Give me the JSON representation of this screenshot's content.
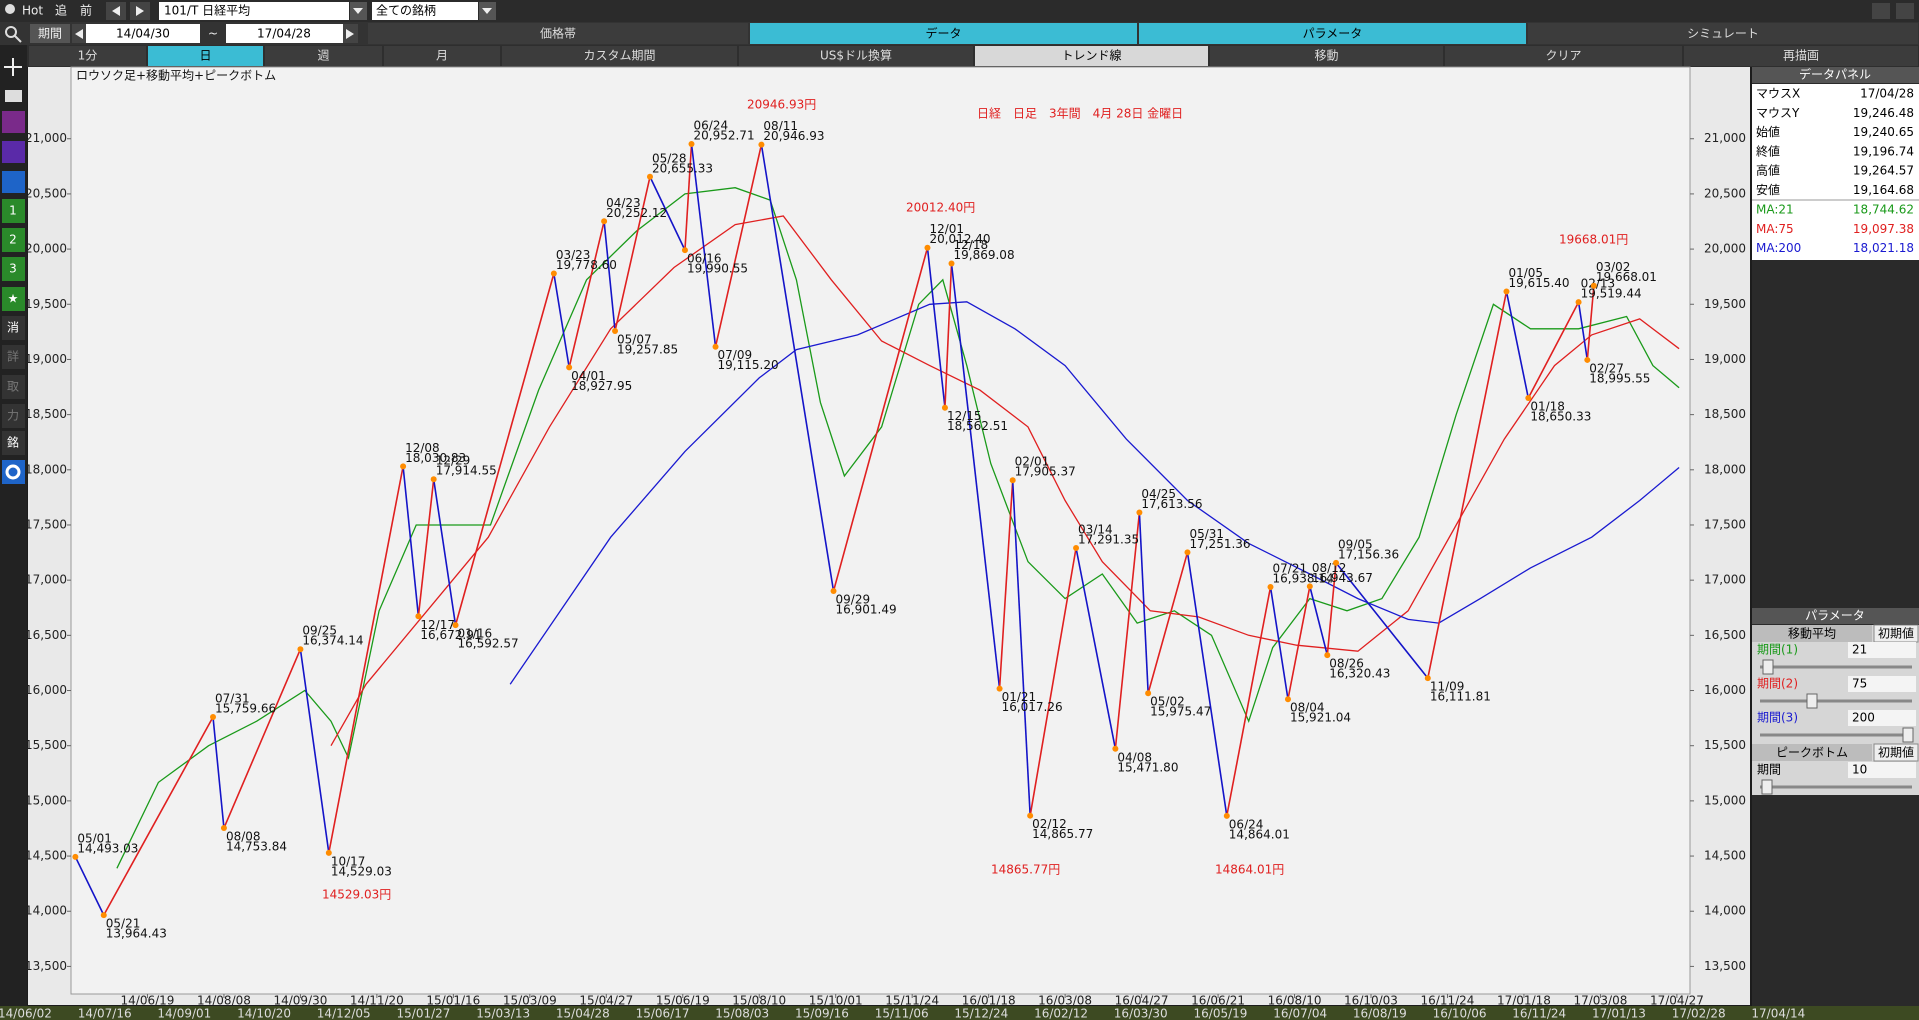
{
  "ui": {
    "toolbar": {
      "hot": "Hot",
      "buttons": [
        "追",
        "前"
      ],
      "symbol": "101/T 日経平均",
      "universe": "全ての銘柄"
    },
    "period": {
      "label": "期間",
      "from": "14/04/30",
      "sep": "~",
      "to": "17/04/28"
    },
    "tabs": [
      "価格帯",
      "データ",
      "パラメータ",
      "シミュレート"
    ],
    "timeframes": [
      "1分",
      "日",
      "週",
      "月",
      "カスタム期間",
      "US$ドル換算",
      "トレンド線",
      "移動",
      "クリア",
      "再描画"
    ],
    "sidebar": [
      "1",
      "2",
      "3",
      "★",
      "消",
      "詳",
      "取",
      "力",
      "銘"
    ],
    "data_panel": {
      "title": "データパネル",
      "rows": [
        [
          "マウスX",
          "17/04/28"
        ],
        [
          "マウスY",
          "19,246.48"
        ],
        [
          "始値",
          "19,240.65"
        ],
        [
          "終値",
          "19,196.74"
        ],
        [
          "高値",
          "19,264.57"
        ],
        [
          "安値",
          "19,164.68"
        ]
      ],
      "ma_values": [
        "18,744.62",
        "19,097.38",
        "18,021.18"
      ]
    },
    "param_panel": {
      "title": "パラメータ",
      "ma_label": "移動平均",
      "reset": "初期値",
      "periods": [
        {
          "label": "期間(1)",
          "value": 21
        },
        {
          "label": "期間(2)",
          "value": 75
        },
        {
          "label": "期間(3)",
          "value": 200
        }
      ],
      "peak_label": "ピークボトム",
      "peak_period": {
        "label": "期間",
        "value": 10
      }
    },
    "bottom_dates": [
      "14/06/02",
      "14/07/16",
      "14/09/01",
      "14/10/20",
      "14/12/05",
      "15/01/27",
      "15/03/13",
      "15/04/28",
      "15/06/17",
      "15/08/03",
      "15/09/16",
      "15/11/06",
      "15/12/24",
      "16/02/12",
      "16/03/30",
      "16/05/19",
      "16/07/04",
      "16/08/19",
      "16/10/06",
      "16/11/24",
      "17/01/13",
      "17/02/28",
      "17/04/14"
    ]
  },
  "chart_data": {
    "type": "stock",
    "title": "日経　日足　3年間　4月 28日 金曜日",
    "subtitle": "ロウソク足+移動平均+ピークボトム",
    "annotations": [
      "20946.93円",
      "20012.40円",
      "19668.01円",
      "14529.03円",
      "14865.77円",
      "14864.01円"
    ],
    "xlim": [
      -1,
      740
    ],
    "xticks": [
      {
        "value": 34,
        "label": "14/06/19"
      },
      {
        "value": 69,
        "label": "14/08/08"
      },
      {
        "value": 104,
        "label": "14/09/30"
      },
      {
        "value": 139,
        "label": "14/11/20"
      },
      {
        "value": 174,
        "label": "15/01/16"
      },
      {
        "value": 209,
        "label": "15/03/09"
      },
      {
        "value": 244,
        "label": "15/04/27"
      },
      {
        "value": 279,
        "label": "15/06/19"
      },
      {
        "value": 314,
        "label": "15/08/10"
      },
      {
        "value": 349,
        "label": "15/10/01"
      },
      {
        "value": 384,
        "label": "15/11/24"
      },
      {
        "value": 419,
        "label": "16/01/18"
      },
      {
        "value": 454,
        "label": "16/03/08"
      },
      {
        "value": 489,
        "label": "16/04/27"
      },
      {
        "value": 524,
        "label": "16/06/21"
      },
      {
        "value": 559,
        "label": "16/08/10"
      },
      {
        "value": 594,
        "label": "16/10/03"
      },
      {
        "value": 629,
        "label": "16/11/24"
      },
      {
        "value": 664,
        "label": "17/01/18"
      },
      {
        "value": 699,
        "label": "17/03/08"
      },
      {
        "value": 734,
        "label": "17/04/27"
      }
    ],
    "ylim": [
      13250,
      21650
    ],
    "yticks": [
      {
        "value": 13500,
        "label": "13,500"
      },
      {
        "value": 14000,
        "label": "14,000"
      },
      {
        "value": 14500,
        "label": "14,500"
      },
      {
        "value": 15000,
        "label": "15,000"
      },
      {
        "value": 15500,
        "label": "15,500"
      },
      {
        "value": 16000,
        "label": "16,000"
      },
      {
        "value": 16500,
        "label": "16,500"
      },
      {
        "value": 17000,
        "label": "17,000"
      },
      {
        "value": 17500,
        "label": "17,500"
      },
      {
        "value": 18000,
        "label": "18,000"
      },
      {
        "value": 18500,
        "label": "18,500"
      },
      {
        "value": 19000,
        "label": "19,000"
      },
      {
        "value": 19500,
        "label": "19,500"
      },
      {
        "value": 20000,
        "label": "20,000"
      },
      {
        "value": 20500,
        "label": "20,500"
      },
      {
        "value": 21000,
        "label": "21,000"
      }
    ],
    "up_color": "#e02020",
    "down_color": "#1414c8",
    "peak_color": "#ff8c00",
    "peaks": [
      {
        "date": "05/01",
        "x": 1,
        "value": 14493.03,
        "label": "14,493.03"
      },
      {
        "date": "05/21",
        "x": 14,
        "value": 13964.43,
        "label": "13,964.43"
      },
      {
        "date": "07/31",
        "x": 64,
        "value": 15759.66,
        "label": "15,759.66"
      },
      {
        "date": "08/08",
        "x": 69,
        "value": 14753.84,
        "label": "14,753.84"
      },
      {
        "date": "09/25",
        "x": 104,
        "value": 16374.14,
        "label": "16,374.14"
      },
      {
        "date": "10/17",
        "x": 117,
        "value": 14529.03,
        "label": "14,529.03"
      },
      {
        "date": "12/08",
        "x": 151,
        "value": 18030.83,
        "label": "18,030.83"
      },
      {
        "date": "12/17",
        "x": 158,
        "value": 16672.91,
        "label": "16,672.91"
      },
      {
        "date": "12/29",
        "x": 165,
        "value": 17914.55,
        "label": "17,914.55"
      },
      {
        "date": "01/16",
        "x": 175,
        "value": 16592.57,
        "label": "16,592.57"
      },
      {
        "date": "03/23",
        "x": 220,
        "value": 19778.6,
        "label": "19,778.60"
      },
      {
        "date": "04/01",
        "x": 227,
        "value": 18927.95,
        "label": "18,927.95"
      },
      {
        "date": "04/23",
        "x": 243,
        "value": 20252.12,
        "label": "20,252.12"
      },
      {
        "date": "05/07",
        "x": 248,
        "value": 19257.85,
        "label": "19,257.85"
      },
      {
        "date": "05/28",
        "x": 264,
        "value": 20655.33,
        "label": "20,655.33"
      },
      {
        "date": "06/16",
        "x": 280,
        "value": 19990.55,
        "label": "19,990.55"
      },
      {
        "date": "06/24",
        "x": 283,
        "value": 20952.71,
        "label": "20,952.71"
      },
      {
        "date": "07/09",
        "x": 294,
        "value": 19115.2,
        "label": "19,115.20"
      },
      {
        "date": "08/11",
        "x": 315,
        "value": 20946.93,
        "label": "20,946.93"
      },
      {
        "date": "09/29",
        "x": 348,
        "value": 16901.49,
        "label": "16,901.49"
      },
      {
        "date": "12/01",
        "x": 391,
        "value": 20012.4,
        "label": "20,012.40"
      },
      {
        "date": "12/15",
        "x": 399,
        "value": 18562.51,
        "label": "18,562.51"
      },
      {
        "date": "12/18",
        "x": 402,
        "value": 19869.08,
        "label": "19,869.08"
      },
      {
        "date": "01/21",
        "x": 424,
        "value": 16017.26,
        "label": "16,017.26"
      },
      {
        "date": "02/01",
        "x": 430,
        "value": 17905.37,
        "label": "17,905.37"
      },
      {
        "date": "02/12",
        "x": 438,
        "value": 14865.77,
        "label": "14,865.77"
      },
      {
        "date": "03/14",
        "x": 459,
        "value": 17291.35,
        "label": "17,291.35"
      },
      {
        "date": "04/08",
        "x": 477,
        "value": 15471.8,
        "label": "15,471.80"
      },
      {
        "date": "04/25",
        "x": 488,
        "value": 17613.56,
        "label": "17,613.56"
      },
      {
        "date": "05/02",
        "x": 492,
        "value": 15975.47,
        "label": "15,975.47"
      },
      {
        "date": "05/31",
        "x": 510,
        "value": 17251.36,
        "label": "17,251.36"
      },
      {
        "date": "06/24",
        "x": 528,
        "value": 14864.01,
        "label": "14,864.01"
      },
      {
        "date": "07/21",
        "x": 548,
        "value": 16938.14,
        "label": "16,938.14"
      },
      {
        "date": "08/04",
        "x": 556,
        "value": 15921.04,
        "label": "15,921.04"
      },
      {
        "date": "08/12",
        "x": 566,
        "value": 16943.67,
        "label": "16,943.67"
      },
      {
        "date": "08/26",
        "x": 574,
        "value": 16320.43,
        "label": "16,320.43"
      },
      {
        "date": "09/05",
        "x": 578,
        "value": 17156.36,
        "label": "17,156.36"
      },
      {
        "date": "11/09",
        "x": 620,
        "value": 16111.81,
        "label": "16,111.81"
      },
      {
        "date": "01/05",
        "x": 656,
        "value": 19615.4,
        "label": "19,615.40"
      },
      {
        "date": "01/18",
        "x": 666,
        "value": 18650.33,
        "label": "18,650.33"
      },
      {
        "date": "02/13",
        "x": 689,
        "value": 19519.44,
        "label": "19,519.44"
      },
      {
        "date": "02/27",
        "x": 693,
        "value": 18995.55,
        "label": "18,995.55"
      },
      {
        "date": "03/02",
        "x": 696,
        "value": 19668.01,
        "label": "19,668.01"
      }
    ],
    "series": [
      {
        "name": "MA:21",
        "color": "#1a9a1a",
        "x": [
          20,
          39,
          62,
          84,
          106,
          118,
          126,
          140,
          157,
          174,
          191,
          213,
          235,
          258,
          280,
          303,
          319,
          331,
          342,
          353,
          370,
          387,
          398,
          409,
          420,
          437,
          454,
          471,
          487,
          504,
          521,
          538,
          549,
          566,
          583,
          599,
          616,
          633,
          650,
          667,
          689,
          711,
          723,
          735
        ],
        "values": [
          14389,
          15167,
          15500,
          15722,
          16000,
          15722,
          15389,
          16722,
          17500,
          17500,
          17500,
          18722,
          19722,
          20167,
          20500,
          20556,
          20444,
          19722,
          18611,
          17944,
          18389,
          19500,
          19722,
          18944,
          18056,
          17167,
          16833,
          17056,
          16611,
          16722,
          16500,
          15722,
          16389,
          16833,
          16722,
          16833,
          17389,
          18500,
          19500,
          19278,
          19278,
          19389,
          18944,
          18744
        ]
      },
      {
        "name": "MA:75",
        "color": "#e02020",
        "x": [
          118,
          134,
          162,
          190,
          218,
          246,
          275,
          303,
          325,
          347,
          370,
          392,
          415,
          437,
          454,
          471,
          493,
          515,
          538,
          560,
          588,
          611,
          633,
          655,
          678,
          695,
          717,
          735
        ],
        "values": [
          15500,
          16056,
          16722,
          17389,
          18389,
          19278,
          19833,
          20222,
          20300,
          19722,
          19167,
          18944,
          18722,
          18389,
          17722,
          17167,
          16722,
          16667,
          16500,
          16411,
          16356,
          16722,
          17500,
          18278,
          18944,
          19222,
          19367,
          19097
        ]
      },
      {
        "name": "MA:200",
        "color": "#1a1ad0",
        "x": [
          200,
          246,
          280,
          314,
          331,
          359,
          392,
          409,
          431,
          454,
          482,
          510,
          538,
          566,
          588,
          611,
          625,
          644,
          667,
          695,
          717,
          735
        ],
        "values": [
          16056,
          17389,
          18167,
          18833,
          19089,
          19222,
          19500,
          19522,
          19278,
          18944,
          18278,
          17722,
          17333,
          17056,
          16833,
          16644,
          16611,
          16833,
          17111,
          17389,
          17722,
          18021
        ]
      }
    ]
  }
}
